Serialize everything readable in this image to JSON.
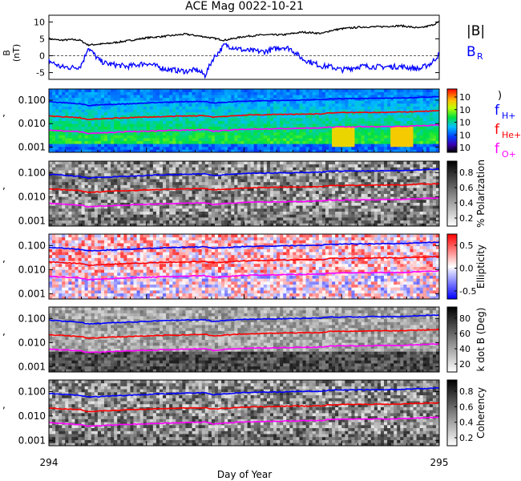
{
  "title": "ACE Mag 0022-10-21",
  "colors": {
    "btot": "#000000",
    "br": "#0000ff",
    "fH": "#0000ff",
    "fHe": "#ff0000",
    "fO": "#ff00ff"
  },
  "chart_data": [
    {
      "panel": "magnetic field",
      "type": "line",
      "ylabel": "B (nT)",
      "ylim": [
        -7,
        12
      ],
      "yticks": [
        "10",
        "5",
        "0",
        "-5"
      ],
      "series": [
        {
          "name": "|B|",
          "x": [
            294.0,
            294.03,
            294.06,
            294.08,
            294.1,
            294.15,
            294.2,
            294.25,
            294.3,
            294.35,
            294.4,
            294.45,
            294.5,
            294.55,
            294.6,
            294.65,
            294.7,
            294.72,
            294.75,
            294.8,
            294.85,
            294.9,
            294.95,
            294.98,
            295.0
          ],
          "values": [
            5,
            4.6,
            4.8,
            4.6,
            3.2,
            3.6,
            4.4,
            5.3,
            5.8,
            6.4,
            5.6,
            4.6,
            5.7,
            6.2,
            6.2,
            7.0,
            6.6,
            7.4,
            8.0,
            8.5,
            8.6,
            8.9,
            8.2,
            9.0,
            10.0
          ]
        },
        {
          "name": "B_R",
          "x": [
            294.0,
            294.03,
            294.06,
            294.08,
            294.09,
            294.1,
            294.13,
            294.15,
            294.2,
            294.25,
            294.3,
            294.35,
            294.38,
            294.4,
            294.42,
            294.45,
            294.5,
            294.55,
            294.6,
            294.62,
            294.65,
            294.7,
            294.72,
            294.75,
            294.8,
            294.85,
            294.9,
            294.95,
            294.98,
            295.0
          ],
          "values": [
            -1.5,
            -3.3,
            -3.5,
            -3.2,
            -1.0,
            2.5,
            -1.5,
            -2.4,
            -3.2,
            -2.2,
            -4.0,
            -4.6,
            -4.2,
            -5.8,
            -1.0,
            3.2,
            1.6,
            1.2,
            2.6,
            2.0,
            -1.0,
            -3.1,
            -3.2,
            -4.2,
            -3.1,
            -3.3,
            -3.2,
            -3.9,
            -2.2,
            0.5
          ]
        }
      ]
    },
    {
      "panel": "power spectrum",
      "type": "heatmap",
      "yscale": "log",
      "yticks": [
        "0.100",
        "0.010",
        "0.001"
      ],
      "colorbar": {
        "colormap": "rainbow",
        "ticks": [
          "10",
          "10",
          "10",
          "10",
          "10"
        ]
      },
      "legend": [
        "f_H+",
        "f_He+",
        "f_O+"
      ]
    },
    {
      "panel": "polarization",
      "type": "heatmap",
      "yscale": "log",
      "yticks": [
        "0.100",
        "0.010",
        "0.001"
      ],
      "colorbar": {
        "label": "% Polarization",
        "colormap": "gray",
        "ticks": [
          "0.8",
          "0.6",
          "0.4",
          "0.2"
        ]
      }
    },
    {
      "panel": "ellipticity",
      "type": "heatmap",
      "yscale": "log",
      "yticks": [
        "0.100",
        "0.010",
        "0.001"
      ],
      "colorbar": {
        "label": "Ellipticity",
        "colormap": "blue-white-red",
        "ticks": [
          "0.5",
          "0.0",
          "-0.5"
        ]
      }
    },
    {
      "panel": "wave normal angle",
      "type": "heatmap",
      "yscale": "log",
      "yticks": [
        "0.100",
        "0.010",
        "0.001"
      ],
      "colorbar": {
        "label": "k dot B (Deg)",
        "colormap": "gray",
        "ticks": [
          "80",
          "60",
          "40",
          "20"
        ]
      }
    },
    {
      "panel": "coherency",
      "type": "heatmap",
      "yscale": "log",
      "yticks": [
        "0.100",
        "0.010",
        "0.001"
      ],
      "colorbar": {
        "label": "Coherency",
        "colormap": "gray",
        "ticks": [
          "0.8",
          "0.6",
          "0.4",
          "0.2"
        ]
      }
    }
  ],
  "gyro_lines": {
    "x": [
      294.0,
      294.05,
      294.08,
      294.1,
      294.2,
      294.3,
      294.4,
      294.42,
      294.5,
      294.6,
      294.7,
      294.72,
      294.8,
      294.9,
      295.0
    ],
    "fH": [
      0.085,
      0.075,
      0.07,
      0.06,
      0.07,
      0.082,
      0.09,
      0.075,
      0.092,
      0.098,
      0.105,
      0.115,
      0.118,
      0.122,
      0.14
    ],
    "fHe": [
      0.021,
      0.019,
      0.018,
      0.015,
      0.018,
      0.02,
      0.022,
      0.019,
      0.023,
      0.025,
      0.026,
      0.029,
      0.03,
      0.031,
      0.035
    ],
    "fO": [
      0.0053,
      0.0048,
      0.0045,
      0.0038,
      0.0045,
      0.0051,
      0.0056,
      0.0047,
      0.0058,
      0.0061,
      0.0066,
      0.0072,
      0.0074,
      0.0076,
      0.0088
    ]
  },
  "labels": {
    "b_ylabel_top": "B",
    "b_ylabel_bottom": "(nT)",
    "b_legend_total": "|B|",
    "b_legend_r": "B",
    "b_legend_r_sub": "R",
    "f_H_main": "f",
    "f_H_sub": "H+",
    "f_He_main": "f",
    "f_He_sub": "He+",
    "f_O_main": "f",
    "f_O_sub": "O+",
    "paren": ")",
    "comma": ","
  },
  "xaxis": {
    "label": "Day of Year",
    "start": "294",
    "end": "295",
    "range": [
      294,
      295
    ]
  }
}
